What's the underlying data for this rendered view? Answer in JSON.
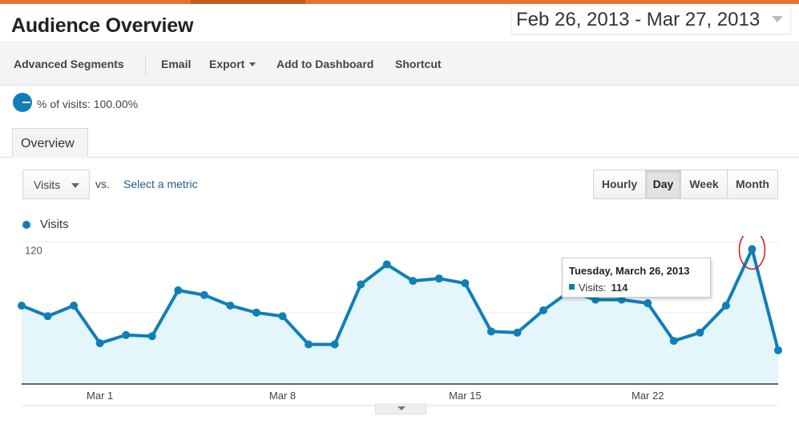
{
  "header": {
    "title": "Audience Overview",
    "date_range": "Feb 26, 2013 - Mar 27, 2013"
  },
  "toolbar": {
    "advanced_segments": "Advanced Segments",
    "email": "Email",
    "export": "Export",
    "add_to_dashboard": "Add to Dashboard",
    "shortcut": "Shortcut"
  },
  "segment": {
    "text": "% of visits: 100.00%"
  },
  "tabs": {
    "overview": "Overview"
  },
  "controls": {
    "metric": "Visits",
    "vs": "vs.",
    "select_metric": "Select a metric",
    "granularity": [
      "Hourly",
      "Day",
      "Week",
      "Month"
    ],
    "active_granularity": "Day"
  },
  "legend": {
    "visits": "Visits"
  },
  "tooltip": {
    "date": "Tuesday, March 26, 2013",
    "metric": "Visits:",
    "value": "114"
  },
  "colors": {
    "series": "#0f7fb8",
    "area": "#e5f5fc",
    "highlight_circle": "#d0161b",
    "top_bar": "#e8742c"
  },
  "chart_data": {
    "type": "area",
    "series": [
      {
        "name": "Visits",
        "x": [
          "Feb 26",
          "Feb 27",
          "Feb 28",
          "Mar 1",
          "Mar 2",
          "Mar 3",
          "Mar 4",
          "Mar 5",
          "Mar 6",
          "Mar 7",
          "Mar 8",
          "Mar 9",
          "Mar 10",
          "Mar 11",
          "Mar 12",
          "Mar 13",
          "Mar 14",
          "Mar 15",
          "Mar 16",
          "Mar 17",
          "Mar 18",
          "Mar 19",
          "Mar 20",
          "Mar 21",
          "Mar 22",
          "Mar 23",
          "Mar 24",
          "Mar 25",
          "Mar 26",
          "Mar 27"
        ],
        "values": [
          66,
          57,
          66,
          34,
          41,
          40,
          79,
          75,
          66,
          60,
          57,
          33,
          33,
          84,
          101,
          87,
          89,
          85,
          44,
          43,
          62,
          78,
          71,
          71,
          68,
          36,
          43,
          66,
          114,
          28
        ]
      }
    ],
    "ylim": [
      0,
      120
    ],
    "yticks": [
      60,
      120
    ],
    "xticks": [
      "Mar 1",
      "Mar 8",
      "Mar 15",
      "Mar 22"
    ],
    "highlight": {
      "x": "Mar 26",
      "value": 114
    },
    "grid": true
  }
}
